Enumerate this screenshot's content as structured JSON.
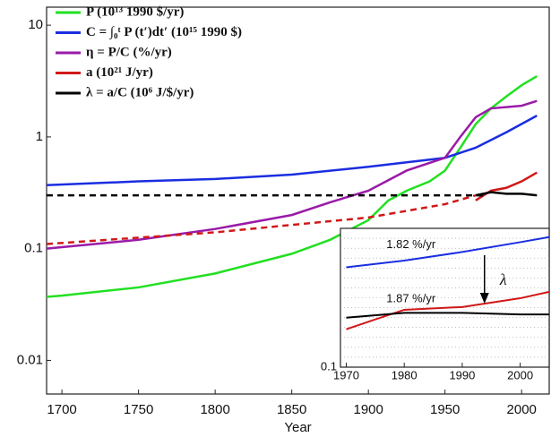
{
  "chart_data": [
    {
      "type": "line",
      "xlabel": "Year",
      "log_scale": true,
      "legend": "upper-left",
      "xlim": [
        1690,
        2018
      ],
      "xticks": [
        1700,
        1750,
        1800,
        1850,
        1900,
        1950,
        2000
      ],
      "ylim": [
        0.005,
        14.5
      ],
      "yticks": [
        10,
        1,
        0.1,
        0.01
      ],
      "series": [
        {
          "name": "P (10¹³ 1990 $/yr)",
          "color": "#22e022",
          "x": [
            1690,
            1700,
            1750,
            1800,
            1850,
            1875,
            1900,
            1913,
            1925,
            1940,
            1950,
            1960,
            1970,
            1980,
            1990,
            2000,
            2010
          ],
          "values": [
            0.037,
            0.038,
            0.045,
            0.06,
            0.09,
            0.12,
            0.18,
            0.27,
            0.33,
            0.4,
            0.5,
            0.8,
            1.3,
            1.8,
            2.3,
            2.9,
            3.5
          ]
        },
        {
          "name": "C = ∫₀ᵗ P (t′)dt′ (10¹⁵ 1990 $)",
          "color": "#1a2ee0",
          "x": [
            1690,
            1750,
            1800,
            1850,
            1900,
            1950,
            1970,
            1990,
            2010
          ],
          "values": [
            0.37,
            0.4,
            0.42,
            0.46,
            0.54,
            0.65,
            0.8,
            1.1,
            1.55
          ]
        },
        {
          "name": "η = P/C (%/yr)",
          "color": "#9a1aa8",
          "x": [
            1690,
            1750,
            1800,
            1850,
            1875,
            1900,
            1925,
            1950,
            1960,
            1970,
            1980,
            2000,
            2010
          ],
          "values": [
            0.1,
            0.12,
            0.15,
            0.2,
            0.26,
            0.33,
            0.5,
            0.65,
            1.0,
            1.5,
            1.8,
            1.9,
            2.1
          ]
        },
        {
          "name": "a (10²¹ J/yr)",
          "color": "#d01818",
          "x": [
            1970,
            1980,
            1990,
            2000,
            2010
          ],
          "values": [
            0.27,
            0.33,
            0.35,
            0.4,
            0.48
          ]
        },
        {
          "name": "λ = a/C (10⁶ J/$/yr)",
          "color": "#000000",
          "x": [
            1970,
            1980,
            1990,
            2000,
            2010
          ],
          "values": [
            0.3,
            0.32,
            0.31,
            0.31,
            0.3
          ]
        },
        {
          "color": "#d01818",
          "dashed": true,
          "x": [
            1690,
            1800,
            1900,
            1950,
            1970
          ],
          "values": [
            0.11,
            0.14,
            0.19,
            0.25,
            0.3
          ]
        },
        {
          "color": "#000000",
          "dashed": true,
          "x": [
            1690,
            1975
          ],
          "values": [
            0.3,
            0.3
          ]
        }
      ]
    },
    {
      "type": "line",
      "log_scale": true,
      "grid": true,
      "xlim": [
        1969,
        2005
      ],
      "xticks": [
        1970,
        1980,
        1990,
        2000
      ],
      "ylim": [
        0.1,
        1.8
      ],
      "yticks": [
        0.1
      ],
      "annotations": [
        {
          "text": "1.82 %/yr",
          "color": "#1a2ee0"
        },
        {
          "text": "1.87 %/yr",
          "color": "#d01818"
        },
        {
          "text": "λ",
          "color": "#000000"
        }
      ],
      "series": [
        {
          "color": "#1a2ee0",
          "x": [
            1970,
            1980,
            1990,
            2000,
            2005
          ],
          "values": [
            0.8,
            0.92,
            1.1,
            1.35,
            1.5
          ]
        },
        {
          "color": "#d01818",
          "x": [
            1970,
            1975,
            1980,
            1990,
            2000,
            2005
          ],
          "values": [
            0.22,
            0.27,
            0.33,
            0.35,
            0.42,
            0.48
          ]
        },
        {
          "color": "#000000",
          "x": [
            1970,
            1980,
            1990,
            2000,
            2005
          ],
          "values": [
            0.28,
            0.31,
            0.31,
            0.3,
            0.3
          ]
        }
      ]
    }
  ]
}
